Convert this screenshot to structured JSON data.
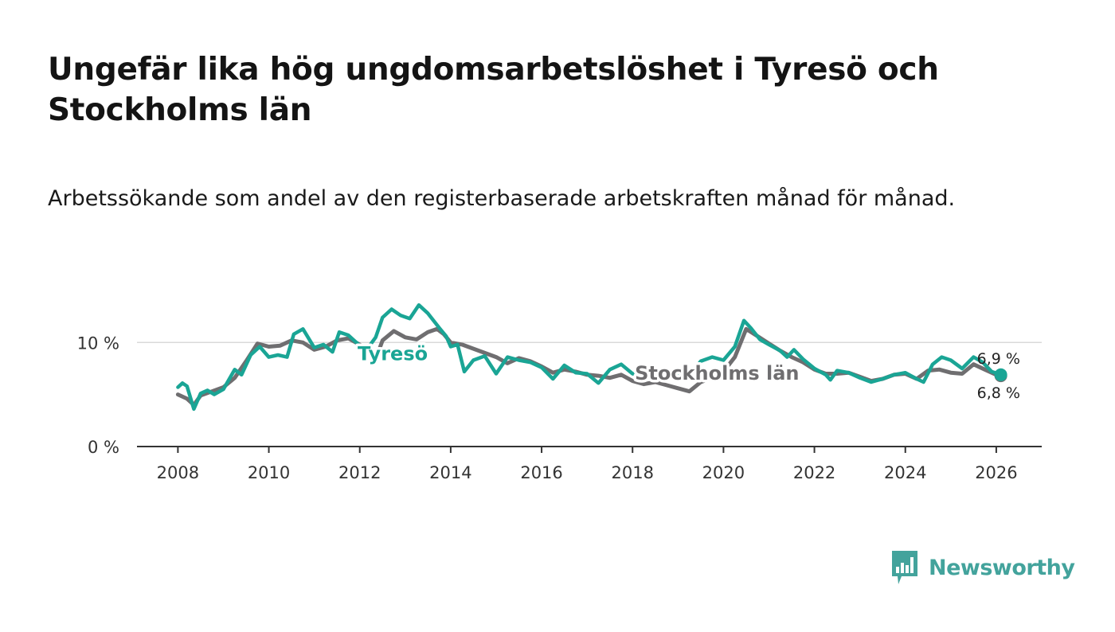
{
  "header": {
    "title": "Ungefär lika hög ungdomsarbetslöshet i Tyresö och Stockholms län",
    "subtitle": "Arbetssökande som andel av den registerbaserade arbetskraften månad för månad."
  },
  "brand": {
    "name": "Newsworthy",
    "color": "#43a39c"
  },
  "chart_data": {
    "type": "line",
    "title": "Ungefär lika hög ungdomsarbetslöshet i Tyresö och Stockholms län",
    "subtitle": "Arbetssökande som andel av den registerbaserade arbetskraften månad för månad.",
    "xlabel": "",
    "ylabel": "",
    "xlim": [
      2007.1,
      2027.0
    ],
    "ylim": [
      0,
      14
    ],
    "x_ticks": [
      2008,
      2010,
      2012,
      2014,
      2016,
      2018,
      2020,
      2022,
      2024,
      2026
    ],
    "x_tick_labels": [
      "2008",
      "2010",
      "2012",
      "2014",
      "2016",
      "2018",
      "2020",
      "2022",
      "2024",
      "2026"
    ],
    "y_ticks": [
      0,
      10
    ],
    "y_tick_labels": [
      "0 %",
      "10 %"
    ],
    "grid": "horizontal",
    "series": [
      {
        "name": "Stockholms län",
        "label": "Stockholms län",
        "color": "#6f6e70",
        "end_value_label": "6,8 %",
        "points": [
          [
            2008.0,
            5.0
          ],
          [
            2008.2,
            4.6
          ],
          [
            2008.35,
            4.0
          ],
          [
            2008.5,
            4.9
          ],
          [
            2008.75,
            5.3
          ],
          [
            2009.0,
            5.7
          ],
          [
            2009.25,
            6.6
          ],
          [
            2009.5,
            8.2
          ],
          [
            2009.75,
            9.9
          ],
          [
            2010.0,
            9.6
          ],
          [
            2010.25,
            9.7
          ],
          [
            2010.5,
            10.2
          ],
          [
            2010.75,
            10.0
          ],
          [
            2011.0,
            9.3
          ],
          [
            2011.25,
            9.6
          ],
          [
            2011.5,
            10.2
          ],
          [
            2011.75,
            10.4
          ],
          [
            2012.0,
            9.8
          ],
          [
            2012.25,
            9.0
          ],
          [
            2012.4,
            9.0
          ],
          [
            2012.5,
            10.2
          ],
          [
            2012.75,
            11.1
          ],
          [
            2013.0,
            10.5
          ],
          [
            2013.25,
            10.3
          ],
          [
            2013.5,
            11.0
          ],
          [
            2013.7,
            11.3
          ],
          [
            2013.85,
            10.8
          ],
          [
            2014.0,
            10.0
          ],
          [
            2014.25,
            9.8
          ],
          [
            2014.5,
            9.4
          ],
          [
            2014.75,
            9.0
          ],
          [
            2015.0,
            8.6
          ],
          [
            2015.25,
            8.0
          ],
          [
            2015.5,
            8.5
          ],
          [
            2015.75,
            8.2
          ],
          [
            2016.0,
            7.7
          ],
          [
            2016.25,
            7.1
          ],
          [
            2016.5,
            7.4
          ],
          [
            2016.75,
            7.2
          ],
          [
            2017.0,
            6.9
          ],
          [
            2017.25,
            6.8
          ],
          [
            2017.5,
            6.6
          ],
          [
            2017.75,
            6.9
          ],
          [
            2018.0,
            6.3
          ],
          [
            2018.25,
            6.0
          ],
          [
            2018.5,
            6.2
          ],
          [
            2018.75,
            5.9
          ],
          [
            2019.0,
            5.6
          ],
          [
            2019.25,
            5.3
          ],
          [
            2019.5,
            6.2
          ],
          [
            2019.75,
            6.6
          ],
          [
            2020.0,
            7.2
          ],
          [
            2020.25,
            8.6
          ],
          [
            2020.5,
            11.3
          ],
          [
            2020.75,
            10.6
          ],
          [
            2021.0,
            9.9
          ],
          [
            2021.25,
            9.2
          ],
          [
            2021.5,
            8.6
          ],
          [
            2021.75,
            8.1
          ],
          [
            2022.0,
            7.4
          ],
          [
            2022.25,
            7.0
          ],
          [
            2022.5,
            7.0
          ],
          [
            2022.75,
            7.1
          ],
          [
            2023.0,
            6.7
          ],
          [
            2023.25,
            6.3
          ],
          [
            2023.5,
            6.5
          ],
          [
            2023.75,
            6.9
          ],
          [
            2024.0,
            7.0
          ],
          [
            2024.25,
            6.5
          ],
          [
            2024.5,
            7.3
          ],
          [
            2024.75,
            7.4
          ],
          [
            2025.0,
            7.1
          ],
          [
            2025.25,
            7.0
          ],
          [
            2025.5,
            7.9
          ],
          [
            2025.75,
            7.4
          ],
          [
            2026.0,
            6.9
          ],
          [
            2026.1,
            6.8
          ]
        ]
      },
      {
        "name": "Tyresö",
        "label": "Tyresö",
        "color": "#1aa595",
        "end_value_label": "6,9 %",
        "points": [
          [
            2008.0,
            5.7
          ],
          [
            2008.1,
            6.1
          ],
          [
            2008.2,
            5.8
          ],
          [
            2008.35,
            3.6
          ],
          [
            2008.5,
            5.1
          ],
          [
            2008.65,
            5.4
          ],
          [
            2008.8,
            5.0
          ],
          [
            2009.0,
            5.5
          ],
          [
            2009.25,
            7.4
          ],
          [
            2009.4,
            6.9
          ],
          [
            2009.6,
            8.8
          ],
          [
            2009.8,
            9.6
          ],
          [
            2010.0,
            8.6
          ],
          [
            2010.2,
            8.8
          ],
          [
            2010.4,
            8.6
          ],
          [
            2010.55,
            10.8
          ],
          [
            2010.75,
            11.3
          ],
          [
            2011.0,
            9.5
          ],
          [
            2011.2,
            9.8
          ],
          [
            2011.4,
            9.1
          ],
          [
            2011.55,
            11.0
          ],
          [
            2011.75,
            10.7
          ],
          [
            2012.0,
            9.7
          ],
          [
            2012.2,
            9.6
          ],
          [
            2012.35,
            10.5
          ],
          [
            2012.5,
            12.4
          ],
          [
            2012.7,
            13.2
          ],
          [
            2012.9,
            12.6
          ],
          [
            2013.1,
            12.3
          ],
          [
            2013.3,
            13.6
          ],
          [
            2013.5,
            12.8
          ],
          [
            2013.75,
            11.4
          ],
          [
            2013.9,
            10.6
          ],
          [
            2014.0,
            9.6
          ],
          [
            2014.15,
            9.8
          ],
          [
            2014.3,
            7.2
          ],
          [
            2014.5,
            8.3
          ],
          [
            2014.75,
            8.7
          ],
          [
            2015.0,
            7.0
          ],
          [
            2015.25,
            8.6
          ],
          [
            2015.5,
            8.3
          ],
          [
            2015.75,
            8.1
          ],
          [
            2016.0,
            7.6
          ],
          [
            2016.25,
            6.5
          ],
          [
            2016.5,
            7.8
          ],
          [
            2016.75,
            7.1
          ],
          [
            2017.0,
            7.0
          ],
          [
            2017.25,
            6.1
          ],
          [
            2017.5,
            7.4
          ],
          [
            2017.75,
            7.9
          ],
          [
            2018.0,
            7.0
          ],
          [
            2018.25,
            6.8
          ],
          [
            2018.5,
            7.0
          ],
          [
            2018.75,
            6.6
          ],
          [
            2019.0,
            7.0
          ],
          [
            2019.25,
            6.8
          ],
          [
            2019.5,
            8.2
          ],
          [
            2019.75,
            8.6
          ],
          [
            2020.0,
            8.3
          ],
          [
            2020.25,
            9.6
          ],
          [
            2020.45,
            12.1
          ],
          [
            2020.6,
            11.4
          ],
          [
            2020.8,
            10.3
          ],
          [
            2021.0,
            9.8
          ],
          [
            2021.25,
            9.2
          ],
          [
            2021.4,
            8.6
          ],
          [
            2021.55,
            9.3
          ],
          [
            2021.75,
            8.4
          ],
          [
            2022.0,
            7.5
          ],
          [
            2022.25,
            6.9
          ],
          [
            2022.35,
            6.4
          ],
          [
            2022.5,
            7.3
          ],
          [
            2022.75,
            7.1
          ],
          [
            2023.0,
            6.6
          ],
          [
            2023.25,
            6.2
          ],
          [
            2023.5,
            6.5
          ],
          [
            2023.75,
            6.9
          ],
          [
            2024.0,
            7.1
          ],
          [
            2024.25,
            6.5
          ],
          [
            2024.4,
            6.2
          ],
          [
            2024.6,
            7.9
          ],
          [
            2024.8,
            8.6
          ],
          [
            2025.0,
            8.3
          ],
          [
            2025.25,
            7.5
          ],
          [
            2025.5,
            8.6
          ],
          [
            2025.7,
            8.1
          ],
          [
            2025.9,
            7.2
          ],
          [
            2026.1,
            6.9
          ]
        ]
      }
    ]
  }
}
